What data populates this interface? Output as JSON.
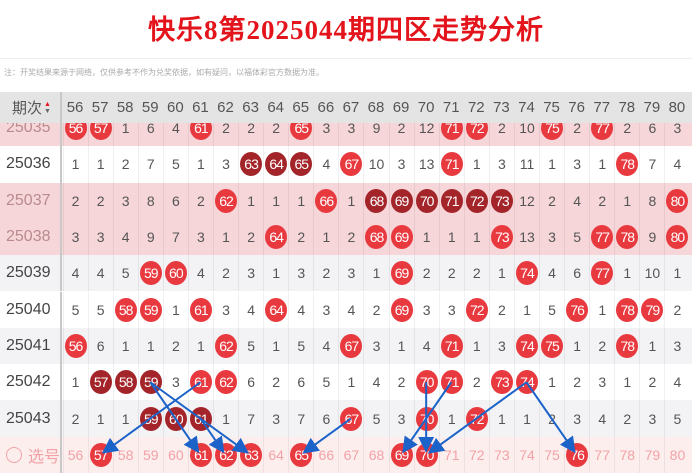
{
  "title": "快乐8第2025044期四区走势分析",
  "note": "注：开奖结果来源于网络，仅供参考不作为兑奖依据，如有疑问，以福体彩官方数据为准。",
  "header": {
    "id_label": "期次",
    "sort_icon": "sort-up-down-icon",
    "columns": [
      56,
      57,
      58,
      59,
      60,
      61,
      62,
      63,
      64,
      65,
      66,
      67,
      68,
      69,
      70,
      71,
      72,
      73,
      74,
      75,
      76,
      77,
      78,
      79,
      80
    ]
  },
  "colors": {
    "ball": "#e8393f",
    "ball_dark": "#a3252a",
    "highlight_row": "#f6d6d9",
    "arrow": "#1c63c9",
    "title": "#e3141b"
  },
  "rows": [
    {
      "id": "25035",
      "highlight": true,
      "cells": [
        56,
        57,
        1,
        6,
        4,
        61,
        2,
        2,
        2,
        65,
        3,
        3,
        9,
        2,
        12,
        71,
        72,
        2,
        10,
        75,
        2,
        77,
        2,
        6,
        3
      ],
      "dark": []
    },
    {
      "id": "25036",
      "highlight": false,
      "cells": [
        1,
        1,
        2,
        7,
        5,
        1,
        3,
        63,
        64,
        65,
        4,
        67,
        10,
        3,
        13,
        71,
        1,
        3,
        11,
        1,
        3,
        1,
        78,
        7,
        4
      ],
      "dark": [
        63,
        64,
        65
      ]
    },
    {
      "id": "25037",
      "highlight": true,
      "cells": [
        2,
        2,
        3,
        8,
        6,
        2,
        62,
        1,
        1,
        1,
        66,
        1,
        68,
        69,
        70,
        71,
        72,
        73,
        12,
        2,
        4,
        2,
        1,
        8,
        80
      ],
      "dark": [
        68,
        69,
        70,
        71,
        72,
        73
      ]
    },
    {
      "id": "25038",
      "highlight": true,
      "cells": [
        3,
        3,
        4,
        9,
        7,
        3,
        1,
        2,
        64,
        2,
        1,
        2,
        68,
        69,
        1,
        1,
        1,
        73,
        13,
        3,
        5,
        77,
        78,
        9,
        80
      ],
      "dark": []
    },
    {
      "id": "25039",
      "highlight": false,
      "cells": [
        4,
        4,
        5,
        59,
        60,
        4,
        2,
        3,
        1,
        3,
        2,
        3,
        1,
        69,
        2,
        2,
        2,
        1,
        74,
        4,
        6,
        77,
        1,
        10,
        1
      ],
      "dark": []
    },
    {
      "id": "25040",
      "highlight": false,
      "cells": [
        5,
        5,
        58,
        59,
        1,
        61,
        3,
        4,
        64,
        4,
        3,
        4,
        2,
        69,
        3,
        3,
        72,
        2,
        1,
        5,
        76,
        1,
        78,
        79,
        2
      ],
      "dark": []
    },
    {
      "id": "25041",
      "highlight": false,
      "cells": [
        56,
        6,
        1,
        1,
        2,
        1,
        62,
        5,
        1,
        5,
        4,
        67,
        3,
        1,
        4,
        71,
        1,
        3,
        74,
        75,
        1,
        2,
        78,
        1,
        3
      ],
      "dark": []
    },
    {
      "id": "25042",
      "highlight": false,
      "cells": [
        1,
        57,
        58,
        59,
        3,
        61,
        62,
        6,
        2,
        6,
        5,
        1,
        4,
        2,
        70,
        71,
        2,
        73,
        74,
        1,
        2,
        3,
        1,
        2,
        4
      ],
      "dark": [
        57,
        58,
        59
      ]
    },
    {
      "id": "25043",
      "highlight": false,
      "cells": [
        2,
        1,
        1,
        59,
        60,
        61,
        1,
        7,
        3,
        7,
        6,
        67,
        5,
        3,
        70,
        1,
        72,
        1,
        1,
        2,
        3,
        4,
        2,
        3,
        5
      ],
      "dark": [
        59,
        60,
        61
      ]
    }
  ],
  "select": {
    "label": "选号",
    "selected": [
      57,
      61,
      62,
      63,
      65,
      69,
      70,
      76
    ]
  },
  "arrows": [
    {
      "from_row": "25042",
      "from": 61,
      "to": 57
    },
    {
      "from_row": "25042",
      "from": 59,
      "to": 61
    },
    {
      "from_row": "25042",
      "from": 59,
      "to": 63
    },
    {
      "from_row": "25043",
      "from": 61,
      "to": 62
    },
    {
      "from_row": "25043",
      "from": 67,
      "to": 65
    },
    {
      "from_row": "25042",
      "from": 70,
      "to": 70
    },
    {
      "from_row": "25042",
      "from": 71,
      "to": 69
    },
    {
      "from_row": "25042",
      "from": 74,
      "to": 70
    },
    {
      "from_row": "25042",
      "from": 74,
      "to": 76
    }
  ]
}
